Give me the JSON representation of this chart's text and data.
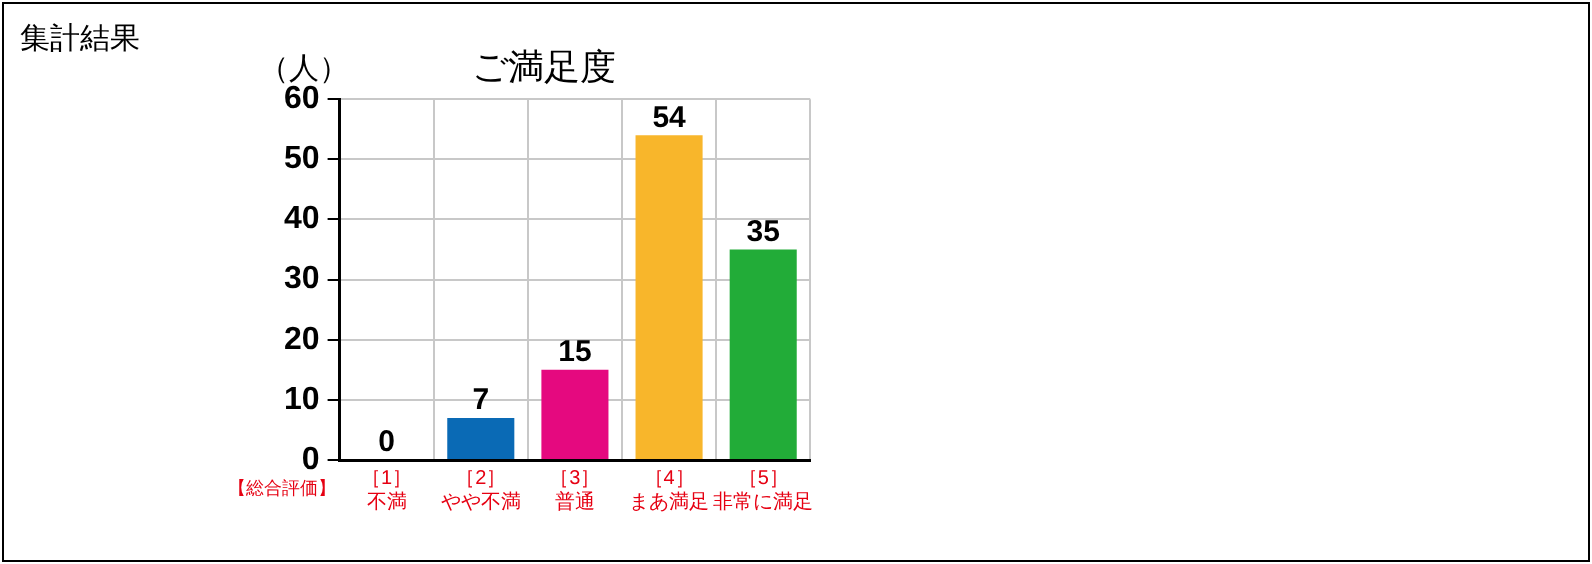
{
  "chart_data": {
    "type": "bar",
    "title": "ご満足度",
    "ylabel": "（人）",
    "categories": [
      "［1］不満",
      "［2］やや不満",
      "［3］普通",
      "［4］まあ満足",
      "［5］非常に満足"
    ],
    "values": [
      0,
      7,
      15,
      54,
      35
    ],
    "colors": [
      "#0a6ab5",
      "#0a6ab5",
      "#e5097f",
      "#f8b62b",
      "#22ac38"
    ],
    "ylim": [
      0,
      60
    ],
    "yticks": [
      0,
      10,
      20,
      30,
      40,
      50,
      60
    ],
    "grid": true,
    "data_labels": true,
    "annotations": [
      "集計結果",
      "【総合評価】"
    ]
  }
}
